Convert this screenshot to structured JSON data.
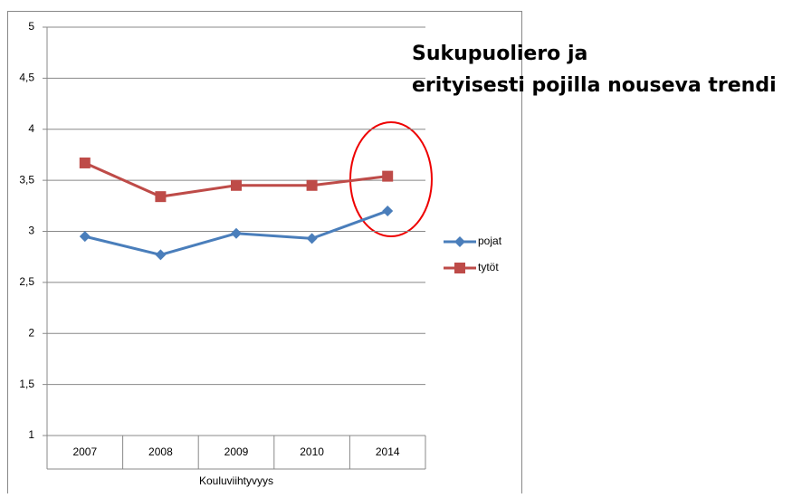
{
  "chart_data": {
    "type": "line",
    "annotation": [
      "Sukupuoliero ja",
      "erityisesti pojilla nouseva trendi"
    ],
    "x_label": "Kouluviihtyvyys",
    "categories": [
      "2007",
      "2008",
      "2009",
      "2010",
      "2014"
    ],
    "series": [
      {
        "name": "pojat",
        "color": "#4a7ebb",
        "marker": "diamond",
        "values": [
          2.95,
          2.77,
          2.98,
          2.93,
          3.2
        ]
      },
      {
        "name": "tytöt",
        "color": "#be4b48",
        "marker": "square",
        "values": [
          3.67,
          3.34,
          3.45,
          3.45,
          3.54
        ]
      }
    ],
    "ylim": [
      1,
      5
    ],
    "yticks": [
      1,
      {
        "value": 1.5,
        "label": "1,5"
      },
      2,
      {
        "value": 2.5,
        "label": "2,5"
      },
      3,
      {
        "value": 3.5,
        "label": "3,5"
      },
      4,
      {
        "value": 4.5,
        "label": "4,5"
      },
      5
    ],
    "grid": true,
    "legend": "right"
  }
}
